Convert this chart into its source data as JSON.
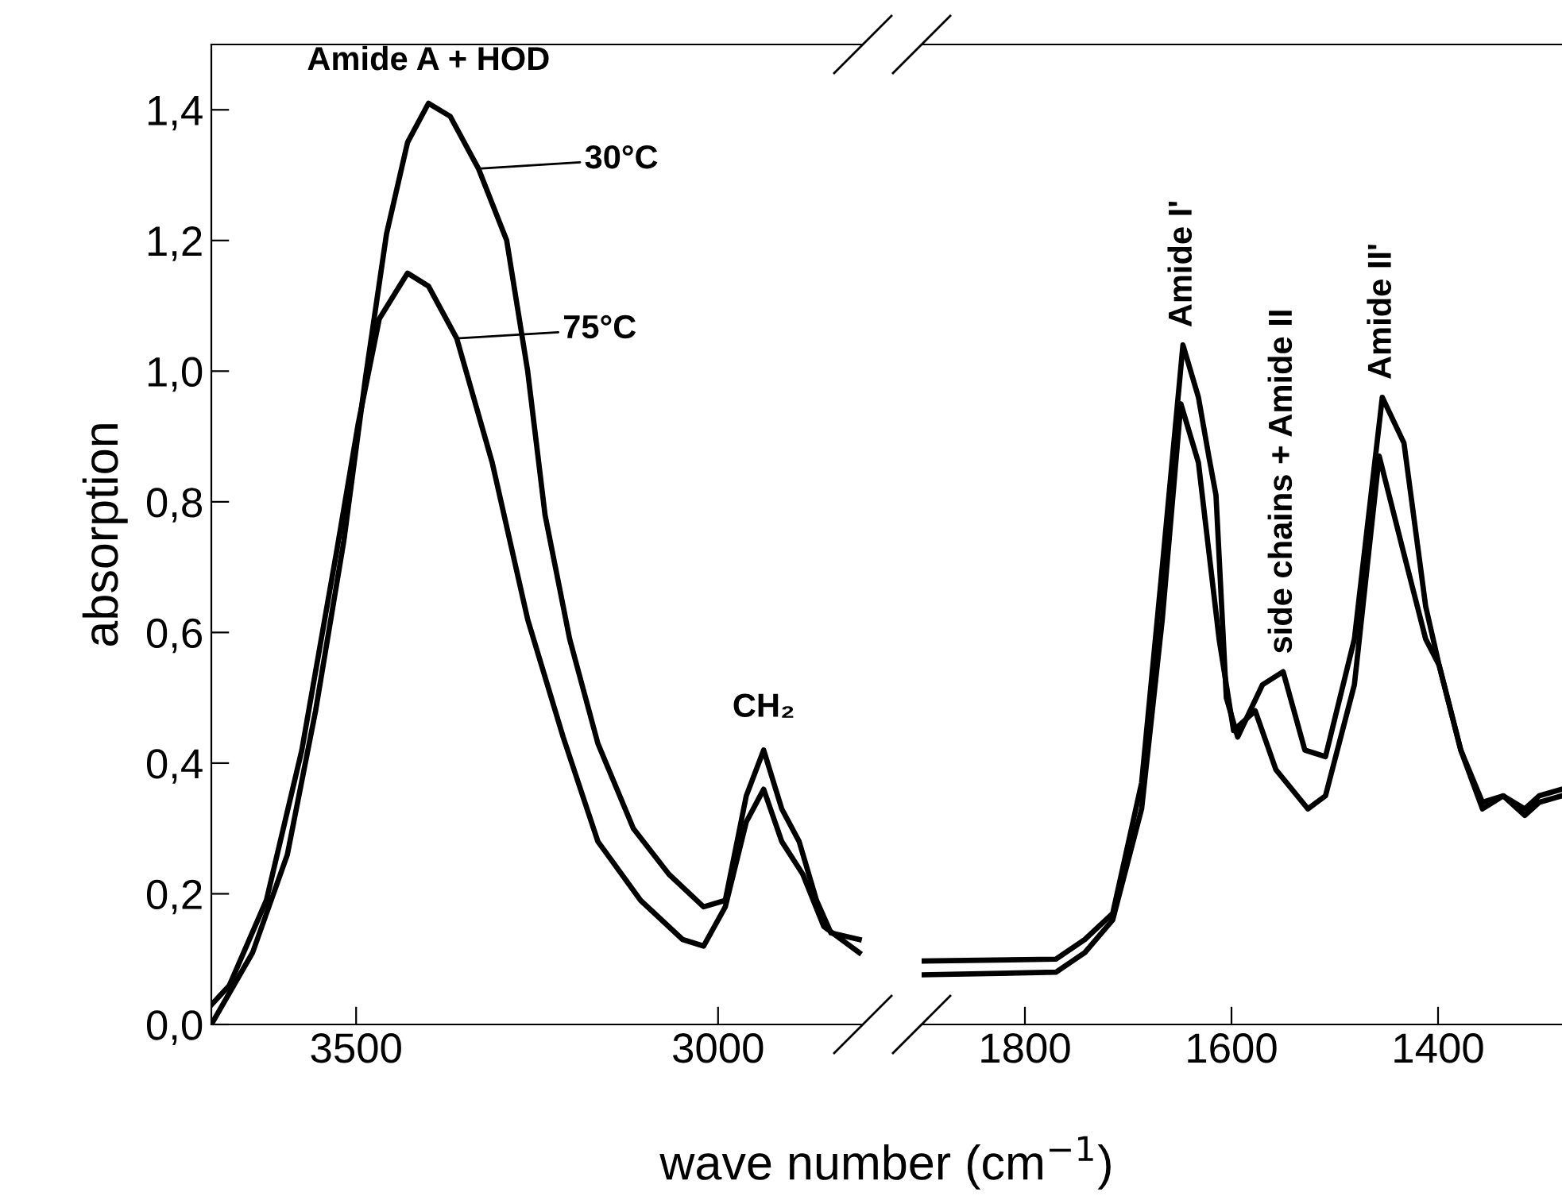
{
  "chart_data": [
    {
      "type": "line",
      "xlabel": "wave number (cm$^{−1}$)",
      "ylabel": "absorption",
      "xlim": [
        3700,
        2800
      ],
      "ylim": [
        0,
        1.5
      ],
      "xticks": [
        3500,
        3000
      ],
      "yticks": [
        {
          "value": 0,
          "label": "0,0"
        },
        {
          "value": 0.2,
          "label": "0,2"
        },
        {
          "value": 0.4,
          "label": "0,4"
        },
        {
          "value": 0.6,
          "label": "0,6"
        },
        {
          "value": 0.8,
          "label": "0,8"
        },
        {
          "value": 1.0,
          "label": "1,0"
        },
        {
          "value": 1.2,
          "label": "1,2"
        },
        {
          "value": 1.4,
          "label": "1,4"
        }
      ],
      "grid": false,
      "legend": "top",
      "annotations": [
        {
          "text": "Amide A + HOD",
          "x": 3400,
          "y": 1.41
        },
        {
          "text": "CH₂",
          "x": 2937,
          "y": 0.42
        }
      ],
      "series": [
        {
          "name": "30°C",
          "color": "#000000",
          "x": [
            3700,
            3643,
            3595,
            3556,
            3517,
            3487,
            3458,
            3429,
            3400,
            3370,
            3331,
            3292,
            3263,
            3239,
            3205,
            3166,
            3117,
            3068,
            3020,
            2990,
            2961,
            2937,
            2912,
            2888,
            2864,
            2844,
            2805
          ],
          "values": [
            0.0,
            0.11,
            0.26,
            0.48,
            0.74,
            0.99,
            1.21,
            1.35,
            1.41,
            1.39,
            1.31,
            1.2,
            1.0,
            0.78,
            0.59,
            0.43,
            0.3,
            0.23,
            0.18,
            0.19,
            0.35,
            0.42,
            0.33,
            0.28,
            0.19,
            0.14,
            0.13
          ]
        },
        {
          "name": "75°C",
          "color": "#000000",
          "x": [
            3700,
            3675,
            3624,
            3575,
            3526,
            3497,
            3468,
            3429,
            3400,
            3361,
            3312,
            3263,
            3214,
            3166,
            3107,
            3049,
            3020,
            2990,
            2961,
            2937,
            2912,
            2883,
            2854,
            2805
          ],
          "values": [
            0.03,
            0.06,
            0.19,
            0.42,
            0.73,
            0.92,
            1.08,
            1.15,
            1.13,
            1.05,
            0.86,
            0.62,
            0.44,
            0.28,
            0.19,
            0.13,
            0.12,
            0.18,
            0.31,
            0.36,
            0.28,
            0.23,
            0.15,
            0.11
          ]
        }
      ]
    },
    {
      "type": "line",
      "xlim": [
        1900,
        1280
      ],
      "ylim": [
        0,
        1.5
      ],
      "xticks": [
        1800,
        1600,
        1400
      ],
      "tick_labels": "x",
      "grid": false,
      "annotations": [
        {
          "text": "Amide I'",
          "x": 1647,
          "y": 1.04
        },
        {
          "text": "side chains + Amide II",
          "x": 1550,
          "y": 0.54
        },
        {
          "text": "Amide II'",
          "x": 1454,
          "y": 0.96
        }
      ],
      "series": [
        {
          "color": "#000000",
          "x": [
            1900,
            1770,
            1742,
            1715,
            1687,
            1667,
            1647,
            1632,
            1622,
            1615,
            1605,
            1594,
            1570,
            1550,
            1529,
            1509,
            1481,
            1454,
            1433,
            1412,
            1399,
            1378,
            1357,
            1337,
            1316,
            1302,
            1280
          ],
          "values": [
            0.097,
            0.1,
            0.13,
            0.17,
            0.37,
            0.7,
            1.04,
            0.96,
            0.87,
            0.81,
            0.5,
            0.44,
            0.52,
            0.54,
            0.42,
            0.41,
            0.59,
            0.96,
            0.89,
            0.64,
            0.55,
            0.42,
            0.34,
            0.35,
            0.33,
            0.35,
            0.36
          ]
        },
        {
          "color": "#000000",
          "x": [
            1900,
            1770,
            1742,
            1715,
            1687,
            1667,
            1649,
            1632,
            1612,
            1598,
            1577,
            1557,
            1526,
            1509,
            1481,
            1457,
            1433,
            1412,
            1399,
            1378,
            1357,
            1337,
            1316,
            1302,
            1280
          ],
          "values": [
            0.076,
            0.08,
            0.11,
            0.16,
            0.33,
            0.62,
            0.95,
            0.86,
            0.59,
            0.45,
            0.48,
            0.39,
            0.33,
            0.35,
            0.52,
            0.87,
            0.72,
            0.59,
            0.55,
            0.42,
            0.33,
            0.35,
            0.32,
            0.34,
            0.35
          ]
        }
      ]
    }
  ]
}
